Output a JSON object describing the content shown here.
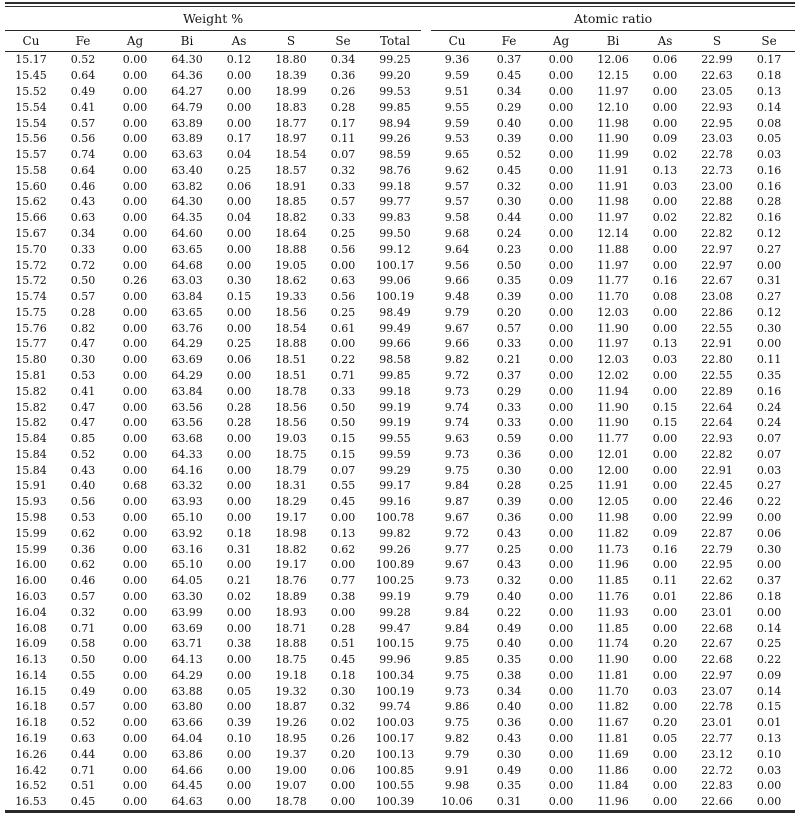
{
  "table": {
    "group_headers": [
      {
        "label": "Weight %"
      },
      {
        "label": "Atomic ratio"
      }
    ],
    "weight_columns": [
      "Cu",
      "Fe",
      "Ag",
      "Bi",
      "As",
      "S",
      "Se",
      "Total"
    ],
    "atomic_columns": [
      "Cu",
      "Fe",
      "Ag",
      "Bi",
      "As",
      "S",
      "Se"
    ],
    "rows": [
      {
        "weight": [
          "15.17",
          "0.52",
          "0.00",
          "64.30",
          "0.12",
          "18.80",
          "0.34",
          "99.25"
        ],
        "atomic": [
          "9.36",
          "0.37",
          "0.00",
          "12.06",
          "0.06",
          "22.99",
          "0.17"
        ]
      },
      {
        "weight": [
          "15.45",
          "0.64",
          "0.00",
          "64.36",
          "0.00",
          "18.39",
          "0.36",
          "99.20"
        ],
        "atomic": [
          "9.59",
          "0.45",
          "0.00",
          "12.15",
          "0.00",
          "22.63",
          "0.18"
        ]
      },
      {
        "weight": [
          "15.52",
          "0.49",
          "0.00",
          "64.27",
          "0.00",
          "18.99",
          "0.26",
          "99.53"
        ],
        "atomic": [
          "9.51",
          "0.34",
          "0.00",
          "11.97",
          "0.00",
          "23.05",
          "0.13"
        ]
      },
      {
        "weight": [
          "15.54",
          "0.41",
          "0.00",
          "64.79",
          "0.00",
          "18.83",
          "0.28",
          "99.85"
        ],
        "atomic": [
          "9.55",
          "0.29",
          "0.00",
          "12.10",
          "0.00",
          "22.93",
          "0.14"
        ]
      },
      {
        "weight": [
          "15.54",
          "0.57",
          "0.00",
          "63.89",
          "0.00",
          "18.77",
          "0.17",
          "98.94"
        ],
        "atomic": [
          "9.59",
          "0.40",
          "0.00",
          "11.98",
          "0.00",
          "22.95",
          "0.08"
        ]
      },
      {
        "weight": [
          "15.56",
          "0.56",
          "0.00",
          "63.89",
          "0.17",
          "18.97",
          "0.11",
          "99.26"
        ],
        "atomic": [
          "9.53",
          "0.39",
          "0.00",
          "11.90",
          "0.09",
          "23.03",
          "0.05"
        ]
      },
      {
        "weight": [
          "15.57",
          "0.74",
          "0.00",
          "63.63",
          "0.04",
          "18.54",
          "0.07",
          "98.59"
        ],
        "atomic": [
          "9.65",
          "0.52",
          "0.00",
          "11.99",
          "0.02",
          "22.78",
          "0.03"
        ]
      },
      {
        "weight": [
          "15.58",
          "0.64",
          "0.00",
          "63.40",
          "0.25",
          "18.57",
          "0.32",
          "98.76"
        ],
        "atomic": [
          "9.62",
          "0.45",
          "0.00",
          "11.91",
          "0.13",
          "22.73",
          "0.16"
        ]
      },
      {
        "weight": [
          "15.60",
          "0.46",
          "0.00",
          "63.82",
          "0.06",
          "18.91",
          "0.33",
          "99.18"
        ],
        "atomic": [
          "9.57",
          "0.32",
          "0.00",
          "11.91",
          "0.03",
          "23.00",
          "0.16"
        ]
      },
      {
        "weight": [
          "15.62",
          "0.43",
          "0.00",
          "64.30",
          "0.00",
          "18.85",
          "0.57",
          "99.77"
        ],
        "atomic": [
          "9.57",
          "0.30",
          "0.00",
          "11.98",
          "0.00",
          "22.88",
          "0.28"
        ]
      },
      {
        "weight": [
          "15.66",
          "0.63",
          "0.00",
          "64.35",
          "0.04",
          "18.82",
          "0.33",
          "99.83"
        ],
        "atomic": [
          "9.58",
          "0.44",
          "0.00",
          "11.97",
          "0.02",
          "22.82",
          "0.16"
        ]
      },
      {
        "weight": [
          "15.67",
          "0.34",
          "0.00",
          "64.60",
          "0.00",
          "18.64",
          "0.25",
          "99.50"
        ],
        "atomic": [
          "9.68",
          "0.24",
          "0.00",
          "12.14",
          "0.00",
          "22.82",
          "0.12"
        ]
      },
      {
        "weight": [
          "15.70",
          "0.33",
          "0.00",
          "63.65",
          "0.00",
          "18.88",
          "0.56",
          "99.12"
        ],
        "atomic": [
          "9.64",
          "0.23",
          "0.00",
          "11.88",
          "0.00",
          "22.97",
          "0.27"
        ]
      },
      {
        "weight": [
          "15.72",
          "0.72",
          "0.00",
          "64.68",
          "0.00",
          "19.05",
          "0.00",
          "100.17"
        ],
        "atomic": [
          "9.56",
          "0.50",
          "0.00",
          "11.97",
          "0.00",
          "22.97",
          "0.00"
        ]
      },
      {
        "weight": [
          "15.72",
          "0.50",
          "0.26",
          "63.03",
          "0.30",
          "18.62",
          "0.63",
          "99.06"
        ],
        "atomic": [
          "9.66",
          "0.35",
          "0.09",
          "11.77",
          "0.16",
          "22.67",
          "0.31"
        ]
      },
      {
        "weight": [
          "15.74",
          "0.57",
          "0.00",
          "63.84",
          "0.15",
          "19.33",
          "0.56",
          "100.19"
        ],
        "atomic": [
          "9.48",
          "0.39",
          "0.00",
          "11.70",
          "0.08",
          "23.08",
          "0.27"
        ]
      },
      {
        "weight": [
          "15.75",
          "0.28",
          "0.00",
          "63.65",
          "0.00",
          "18.56",
          "0.25",
          "98.49"
        ],
        "atomic": [
          "9.79",
          "0.20",
          "0.00",
          "12.03",
          "0.00",
          "22.86",
          "0.12"
        ]
      },
      {
        "weight": [
          "15.76",
          "0.82",
          "0.00",
          "63.76",
          "0.00",
          "18.54",
          "0.61",
          "99.49"
        ],
        "atomic": [
          "9.67",
          "0.57",
          "0.00",
          "11.90",
          "0.00",
          "22.55",
          "0.30"
        ]
      },
      {
        "weight": [
          "15.77",
          "0.47",
          "0.00",
          "64.29",
          "0.25",
          "18.88",
          "0.00",
          "99.66"
        ],
        "atomic": [
          "9.66",
          "0.33",
          "0.00",
          "11.97",
          "0.13",
          "22.91",
          "0.00"
        ]
      },
      {
        "weight": [
          "15.80",
          "0.30",
          "0.00",
          "63.69",
          "0.06",
          "18.51",
          "0.22",
          "98.58"
        ],
        "atomic": [
          "9.82",
          "0.21",
          "0.00",
          "12.03",
          "0.03",
          "22.80",
          "0.11"
        ]
      },
      {
        "weight": [
          "15.81",
          "0.53",
          "0.00",
          "64.29",
          "0.00",
          "18.51",
          "0.71",
          "99.85"
        ],
        "atomic": [
          "9.72",
          "0.37",
          "0.00",
          "12.02",
          "0.00",
          "22.55",
          "0.35"
        ]
      },
      {
        "weight": [
          "15.82",
          "0.41",
          "0.00",
          "63.84",
          "0.00",
          "18.78",
          "0.33",
          "99.18"
        ],
        "atomic": [
          "9.73",
          "0.29",
          "0.00",
          "11.94",
          "0.00",
          "22.89",
          "0.16"
        ]
      },
      {
        "weight": [
          "15.82",
          "0.47",
          "0.00",
          "63.56",
          "0.28",
          "18.56",
          "0.50",
          "99.19"
        ],
        "atomic": [
          "9.74",
          "0.33",
          "0.00",
          "11.90",
          "0.15",
          "22.64",
          "0.24"
        ]
      },
      {
        "weight": [
          "15.82",
          "0.47",
          "0.00",
          "63.56",
          "0.28",
          "18.56",
          "0.50",
          "99.19"
        ],
        "atomic": [
          "9.74",
          "0.33",
          "0.00",
          "11.90",
          "0.15",
          "22.64",
          "0.24"
        ]
      },
      {
        "weight": [
          "15.84",
          "0.85",
          "0.00",
          "63.68",
          "0.00",
          "19.03",
          "0.15",
          "99.55"
        ],
        "atomic": [
          "9.63",
          "0.59",
          "0.00",
          "11.77",
          "0.00",
          "22.93",
          "0.07"
        ]
      },
      {
        "weight": [
          "15.84",
          "0.52",
          "0.00",
          "64.33",
          "0.00",
          "18.75",
          "0.15",
          "99.59"
        ],
        "atomic": [
          "9.73",
          "0.36",
          "0.00",
          "12.01",
          "0.00",
          "22.82",
          "0.07"
        ]
      },
      {
        "weight": [
          "15.84",
          "0.43",
          "0.00",
          "64.16",
          "0.00",
          "18.79",
          "0.07",
          "99.29"
        ],
        "atomic": [
          "9.75",
          "0.30",
          "0.00",
          "12.00",
          "0.00",
          "22.91",
          "0.03"
        ]
      },
      {
        "weight": [
          "15.91",
          "0.40",
          "0.68",
          "63.32",
          "0.00",
          "18.31",
          "0.55",
          "99.17"
        ],
        "atomic": [
          "9.84",
          "0.28",
          "0.25",
          "11.91",
          "0.00",
          "22.45",
          "0.27"
        ]
      },
      {
        "weight": [
          "15.93",
          "0.56",
          "0.00",
          "63.93",
          "0.00",
          "18.29",
          "0.45",
          "99.16"
        ],
        "atomic": [
          "9.87",
          "0.39",
          "0.00",
          "12.05",
          "0.00",
          "22.46",
          "0.22"
        ]
      },
      {
        "weight": [
          "15.98",
          "0.53",
          "0.00",
          "65.10",
          "0.00",
          "19.17",
          "0.00",
          "100.78"
        ],
        "atomic": [
          "9.67",
          "0.36",
          "0.00",
          "11.98",
          "0.00",
          "22.99",
          "0.00"
        ]
      },
      {
        "weight": [
          "15.99",
          "0.62",
          "0.00",
          "63.92",
          "0.18",
          "18.98",
          "0.13",
          "99.82"
        ],
        "atomic": [
          "9.72",
          "0.43",
          "0.00",
          "11.82",
          "0.09",
          "22.87",
          "0.06"
        ]
      },
      {
        "weight": [
          "15.99",
          "0.36",
          "0.00",
          "63.16",
          "0.31",
          "18.82",
          "0.62",
          "99.26"
        ],
        "atomic": [
          "9.77",
          "0.25",
          "0.00",
          "11.73",
          "0.16",
          "22.79",
          "0.30"
        ]
      },
      {
        "weight": [
          "16.00",
          "0.62",
          "0.00",
          "65.10",
          "0.00",
          "19.17",
          "0.00",
          "100.89"
        ],
        "atomic": [
          "9.67",
          "0.43",
          "0.00",
          "11.96",
          "0.00",
          "22.95",
          "0.00"
        ]
      },
      {
        "weight": [
          "16.00",
          "0.46",
          "0.00",
          "64.05",
          "0.21",
          "18.76",
          "0.77",
          "100.25"
        ],
        "atomic": [
          "9.73",
          "0.32",
          "0.00",
          "11.85",
          "0.11",
          "22.62",
          "0.37"
        ]
      },
      {
        "weight": [
          "16.03",
          "0.57",
          "0.00",
          "63.30",
          "0.02",
          "18.89",
          "0.38",
          "99.19"
        ],
        "atomic": [
          "9.79",
          "0.40",
          "0.00",
          "11.76",
          "0.01",
          "22.86",
          "0.18"
        ]
      },
      {
        "weight": [
          "16.04",
          "0.32",
          "0.00",
          "63.99",
          "0.00",
          "18.93",
          "0.00",
          "99.28"
        ],
        "atomic": [
          "9.84",
          "0.22",
          "0.00",
          "11.93",
          "0.00",
          "23.01",
          "0.00"
        ]
      },
      {
        "weight": [
          "16.08",
          "0.71",
          "0.00",
          "63.69",
          "0.00",
          "18.71",
          "0.28",
          "99.47"
        ],
        "atomic": [
          "9.84",
          "0.49",
          "0.00",
          "11.85",
          "0.00",
          "22.68",
          "0.14"
        ]
      },
      {
        "weight": [
          "16.09",
          "0.58",
          "0.00",
          "63.71",
          "0.38",
          "18.88",
          "0.51",
          "100.15"
        ],
        "atomic": [
          "9.75",
          "0.40",
          "0.00",
          "11.74",
          "0.20",
          "22.67",
          "0.25"
        ]
      },
      {
        "weight": [
          "16.13",
          "0.50",
          "0.00",
          "64.13",
          "0.00",
          "18.75",
          "0.45",
          "99.96"
        ],
        "atomic": [
          "9.85",
          "0.35",
          "0.00",
          "11.90",
          "0.00",
          "22.68",
          "0.22"
        ]
      },
      {
        "weight": [
          "16.14",
          "0.55",
          "0.00",
          "64.29",
          "0.00",
          "19.18",
          "0.18",
          "100.34"
        ],
        "atomic": [
          "9.75",
          "0.38",
          "0.00",
          "11.81",
          "0.00",
          "22.97",
          "0.09"
        ]
      },
      {
        "weight": [
          "16.15",
          "0.49",
          "0.00",
          "63.88",
          "0.05",
          "19.32",
          "0.30",
          "100.19"
        ],
        "atomic": [
          "9.73",
          "0.34",
          "0.00",
          "11.70",
          "0.03",
          "23.07",
          "0.14"
        ]
      },
      {
        "weight": [
          "16.18",
          "0.57",
          "0.00",
          "63.80",
          "0.00",
          "18.87",
          "0.32",
          "99.74"
        ],
        "atomic": [
          "9.86",
          "0.40",
          "0.00",
          "11.82",
          "0.00",
          "22.78",
          "0.15"
        ]
      },
      {
        "weight": [
          "16.18",
          "0.52",
          "0.00",
          "63.66",
          "0.39",
          "19.26",
          "0.02",
          "100.03"
        ],
        "atomic": [
          "9.75",
          "0.36",
          "0.00",
          "11.67",
          "0.20",
          "23.01",
          "0.01"
        ]
      },
      {
        "weight": [
          "16.19",
          "0.63",
          "0.00",
          "64.04",
          "0.10",
          "18.95",
          "0.26",
          "100.17"
        ],
        "atomic": [
          "9.82",
          "0.43",
          "0.00",
          "11.81",
          "0.05",
          "22.77",
          "0.13"
        ]
      },
      {
        "weight": [
          "16.26",
          "0.44",
          "0.00",
          "63.86",
          "0.00",
          "19.37",
          "0.20",
          "100.13"
        ],
        "atomic": [
          "9.79",
          "0.30",
          "0.00",
          "11.69",
          "0.00",
          "23.12",
          "0.10"
        ]
      },
      {
        "weight": [
          "16.42",
          "0.71",
          "0.00",
          "64.66",
          "0.00",
          "19.00",
          "0.06",
          "100.85"
        ],
        "atomic": [
          "9.91",
          "0.49",
          "0.00",
          "11.86",
          "0.00",
          "22.72",
          "0.03"
        ]
      },
      {
        "weight": [
          "16.52",
          "0.51",
          "0.00",
          "64.45",
          "0.00",
          "19.07",
          "0.00",
          "100.55"
        ],
        "atomic": [
          "9.98",
          "0.35",
          "0.00",
          "11.84",
          "0.00",
          "22.83",
          "0.00"
        ]
      },
      {
        "weight": [
          "16.53",
          "0.45",
          "0.00",
          "64.63",
          "0.00",
          "18.78",
          "0.00",
          "100.39"
        ],
        "atomic": [
          "10.06",
          "0.31",
          "0.00",
          "11.96",
          "0.00",
          "22.66",
          "0.00"
        ]
      }
    ]
  }
}
